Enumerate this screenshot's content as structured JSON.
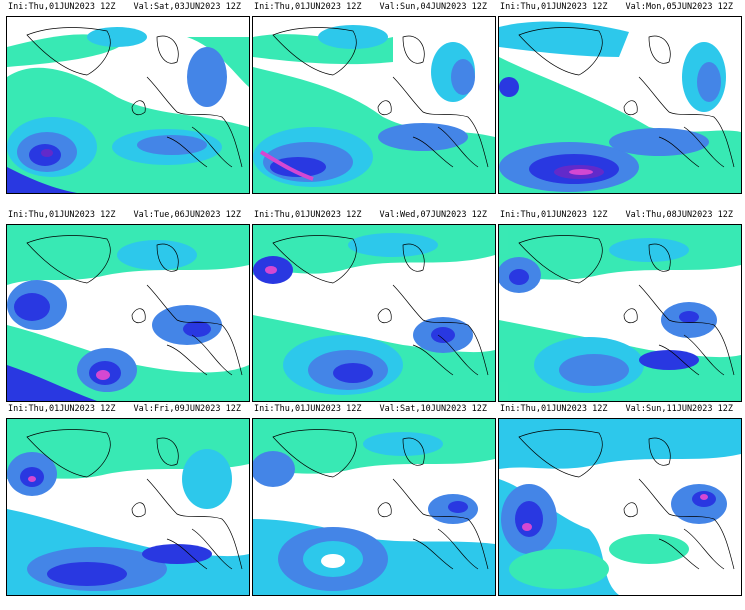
{
  "panels": [
    {
      "ini_label": "Ini:",
      "ini_value": "Thu,01JUN2023  12Z",
      "val_label": "Val:",
      "val_value": "Sat,03JUN2023  12Z"
    },
    {
      "ini_label": "Ini:",
      "ini_value": "Thu,01JUN2023  12Z",
      "val_label": "Val:",
      "val_value": "Sun,04JUN2023  12Z"
    },
    {
      "ini_label": "Ini:",
      "ini_value": "Thu,01JUN2023  12Z",
      "val_label": "Val:",
      "val_value": "Mon,05JUN2023  12Z"
    },
    {
      "ini_label": "Ini:",
      "ini_value": "Thu,01JUN2023  12Z",
      "val_label": "Val:",
      "val_value": "Tue,06JUN2023  12Z"
    },
    {
      "ini_label": "Ini:",
      "ini_value": "Thu,01JUN2023  12Z",
      "val_label": "Val:",
      "val_value": "Wed,07JUN2023  12Z"
    },
    {
      "ini_label": "Ini:",
      "ini_value": "Thu,01JUN2023  12Z",
      "val_label": "Val:",
      "val_value": "Thu,08JUN2023  12Z"
    },
    {
      "ini_label": "Ini:",
      "ini_value": "Thu,01JUN2023  12Z",
      "val_label": "Val:",
      "val_value": "Fri,09JUN2023  12Z"
    },
    {
      "ini_label": "Ini:",
      "ini_value": "Thu,01JUN2023  12Z",
      "val_label": "Val:",
      "val_value": "Sat,10JUN2023  12Z"
    },
    {
      "ini_label": "Ini:",
      "ini_value": "Thu,01JUN2023  12Z",
      "val_label": "Val:",
      "val_value": "Sun,11JUN2023  12Z"
    }
  ],
  "colors": {
    "light": "#2ee8b0",
    "cyan": "#22c6ea",
    "mid": "#3a7fe6",
    "blue": "#1e2ee0",
    "deep": "#5a1fc8",
    "core": "#d23fd0",
    "coast": "#000000"
  }
}
